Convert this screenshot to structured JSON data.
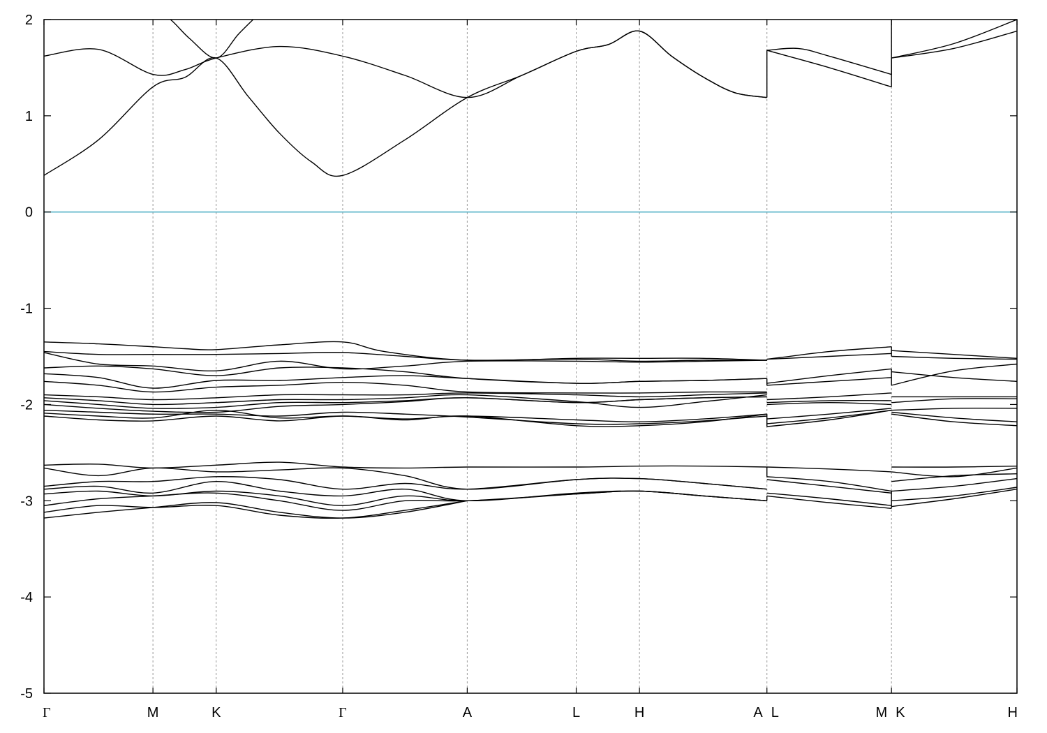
{
  "chart_data": {
    "type": "line",
    "title": "",
    "xlabel": "",
    "ylabel": "",
    "ylim": [
      -5,
      2
    ],
    "yticks": [
      2,
      1,
      0,
      -1,
      -2,
      -3,
      -4,
      -5
    ],
    "xlim": [
      0,
      10
    ],
    "high_symmetry_points": [
      {
        "label": "Γ",
        "x": 0.0
      },
      {
        "label": "M",
        "x": 1.12
      },
      {
        "label": "K",
        "x": 1.77
      },
      {
        "label": "Γ",
        "x": 3.07
      },
      {
        "label": "A",
        "x": 4.35
      },
      {
        "label": "L",
        "x": 5.47
      },
      {
        "label": "H",
        "x": 6.12
      },
      {
        "label": "A",
        "x": 7.43
      },
      {
        "label": "L",
        "x": 7.43
      },
      {
        "label": "M",
        "x": 8.71
      },
      {
        "label": "K",
        "x": 8.71
      },
      {
        "label": "H",
        "x": 10.0
      }
    ],
    "fermi_level": 0,
    "grid": "vertical dashed lines at high-symmetry points",
    "legend": "none",
    "series": [
      {
        "x": [
          0,
          0.56,
          1.12,
          1.45,
          1.77,
          2.1,
          2.42,
          2.75,
          3.07,
          3.71,
          4.35,
          4.91,
          5.47,
          5.8,
          6.12,
          6.45,
          6.78,
          7.1,
          7.43
        ],
        "y": [
          0.38,
          0.75,
          1.3,
          1.4,
          1.6,
          1.2,
          0.82,
          0.52,
          0.38,
          0.75,
          1.19,
          1.42,
          1.67,
          1.74,
          1.88,
          1.62,
          1.4,
          1.24,
          1.19
        ]
      },
      {
        "x": [
          0,
          0.56,
          1.12,
          1.45,
          1.77,
          2.42,
          3.07,
          3.71,
          4.35,
          4.91,
          5.47,
          5.8,
          6.12,
          6.45,
          6.78,
          7.1,
          7.43
        ],
        "y": [
          1.62,
          1.69,
          1.43,
          1.48,
          1.6,
          1.72,
          1.62,
          1.42,
          1.19,
          1.42,
          1.67,
          1.74,
          1.88,
          1.62,
          1.4,
          1.24,
          1.19
        ]
      },
      {
        "x": [
          1.12,
          1.3,
          1.5,
          1.77,
          2.0,
          2.2
        ],
        "y": [
          2.1,
          2.0,
          1.8,
          1.6,
          1.85,
          2.05
        ]
      },
      {
        "x": [
          7.43,
          8.07,
          8.71
        ],
        "y": [
          1.68,
          1.5,
          1.3
        ]
      },
      {
        "x": [
          7.43,
          7.75,
          8.07,
          8.71
        ],
        "y": [
          1.68,
          1.7,
          1.62,
          1.43
        ]
      },
      {
        "x": [
          8.71,
          9.35,
          10.0
        ],
        "y": [
          1.6,
          1.75,
          2.0
        ]
      },
      {
        "x": [
          8.71,
          9.35,
          10.0
        ],
        "y": [
          1.6,
          1.7,
          1.88
        ]
      },
      {
        "x": [
          0,
          0.56,
          1.12,
          1.45,
          1.77,
          2.42,
          3.07,
          3.5,
          4.35,
          5.47,
          6.12,
          6.78,
          7.43
        ],
        "y": [
          -1.35,
          -1.37,
          -1.4,
          -1.42,
          -1.43,
          -1.38,
          -1.35,
          -1.45,
          -1.54,
          -1.52,
          -1.52,
          -1.52,
          -1.54
        ]
      },
      {
        "x": [
          0,
          0.56,
          1.12,
          1.77,
          2.42,
          3.07,
          3.71,
          4.35,
          5.47,
          6.12,
          6.78,
          7.43
        ],
        "y": [
          -1.45,
          -1.48,
          -1.48,
          -1.48,
          -1.47,
          -1.46,
          -1.5,
          -1.54,
          -1.53,
          -1.55,
          -1.54,
          -1.54
        ]
      },
      {
        "x": [
          0,
          0.56,
          1.12,
          1.77,
          2.42,
          3.07,
          3.71,
          4.35,
          5.47,
          6.12,
          6.78,
          7.43
        ],
        "y": [
          -1.46,
          -1.58,
          -1.6,
          -1.65,
          -1.55,
          -1.63,
          -1.6,
          -1.55,
          -1.55,
          -1.56,
          -1.55,
          -1.54
        ]
      },
      {
        "x": [
          0,
          0.56,
          1.12,
          1.77,
          2.42,
          3.07,
          3.71,
          4.35,
          5.47,
          6.12,
          6.78,
          7.43
        ],
        "y": [
          -1.62,
          -1.6,
          -1.63,
          -1.7,
          -1.62,
          -1.62,
          -1.66,
          -1.73,
          -1.78,
          -1.76,
          -1.75,
          -1.73
        ]
      },
      {
        "x": [
          0,
          0.56,
          1.12,
          1.77,
          2.42,
          3.07,
          3.71,
          4.35,
          5.47,
          6.12,
          6.78,
          7.43
        ],
        "y": [
          -1.68,
          -1.72,
          -1.83,
          -1.75,
          -1.75,
          -1.72,
          -1.7,
          -1.73,
          -1.78,
          -1.76,
          -1.75,
          -1.73
        ]
      },
      {
        "x": [
          0,
          0.56,
          1.12,
          1.77,
          2.42,
          3.07,
          3.71,
          4.35,
          5.47,
          6.12,
          6.78,
          7.43
        ],
        "y": [
          -1.76,
          -1.8,
          -1.87,
          -1.82,
          -1.8,
          -1.77,
          -1.8,
          -1.87,
          -1.88,
          -1.88,
          -1.87,
          -1.87
        ]
      },
      {
        "x": [
          0,
          0.56,
          1.12,
          1.77,
          2.42,
          3.07,
          3.71,
          4.35,
          5.47,
          6.12,
          6.78,
          7.43
        ],
        "y": [
          -1.9,
          -1.92,
          -1.95,
          -1.93,
          -1.9,
          -1.9,
          -1.9,
          -1.88,
          -1.9,
          -1.92,
          -1.9,
          -1.88
        ]
      },
      {
        "x": [
          0,
          0.56,
          1.12,
          1.77,
          2.42,
          3.07,
          3.71,
          4.35,
          5.47,
          6.12,
          6.78,
          7.43
        ],
        "y": [
          -1.93,
          -1.96,
          -2.0,
          -1.98,
          -1.95,
          -1.95,
          -1.93,
          -1.9,
          -1.97,
          -2.03,
          -1.97,
          -1.9
        ]
      },
      {
        "x": [
          0,
          0.56,
          1.12,
          1.77,
          2.42,
          3.07,
          3.71,
          4.35,
          5.47,
          6.12,
          6.78,
          7.43
        ],
        "y": [
          -1.96,
          -2.0,
          -2.04,
          -2.03,
          -1.98,
          -1.98,
          -1.96,
          -1.93,
          -1.98,
          -1.95,
          -1.93,
          -1.92
        ]
      },
      {
        "x": [
          0,
          0.56,
          1.12,
          1.77,
          2.42,
          3.07,
          3.71,
          4.35,
          5.47,
          6.12,
          6.78,
          7.43
        ],
        "y": [
          -2.0,
          -2.04,
          -2.07,
          -2.08,
          -2.02,
          -2.0,
          -1.97,
          -1.93,
          -1.98,
          -1.95,
          -1.93,
          -1.92
        ]
      },
      {
        "x": [
          0,
          0.56,
          1.12,
          1.77,
          2.42,
          3.07,
          3.71,
          4.35,
          5.47,
          6.12,
          6.78,
          7.43
        ],
        "y": [
          -2.06,
          -2.08,
          -2.1,
          -2.1,
          -2.12,
          -2.08,
          -2.1,
          -2.13,
          -2.2,
          -2.2,
          -2.17,
          -2.12
        ]
      },
      {
        "x": [
          0,
          0.56,
          1.12,
          1.77,
          2.42,
          3.07,
          3.71,
          4.35,
          5.47,
          6.12,
          6.78,
          7.43
        ],
        "y": [
          -2.09,
          -2.12,
          -2.14,
          -2.06,
          -2.14,
          -2.12,
          -2.15,
          -2.12,
          -2.16,
          -2.18,
          -2.15,
          -2.1
        ]
      },
      {
        "x": [
          0,
          0.56,
          1.12,
          1.77,
          2.42,
          3.07,
          3.71,
          4.35,
          5.47,
          6.12,
          6.78,
          7.43
        ],
        "y": [
          -2.12,
          -2.16,
          -2.17,
          -2.12,
          -2.17,
          -2.12,
          -2.16,
          -2.12,
          -2.22,
          -2.22,
          -2.18,
          -2.1
        ]
      },
      {
        "x": [
          7.43,
          8.07,
          8.71
        ],
        "y": [
          -1.53,
          -1.45,
          -1.4
        ]
      },
      {
        "x": [
          7.43,
          8.07,
          8.71
        ],
        "y": [
          -1.53,
          -1.5,
          -1.47
        ]
      },
      {
        "x": [
          7.43,
          8.07,
          8.71
        ],
        "y": [
          -1.78,
          -1.7,
          -1.63
        ]
      },
      {
        "x": [
          7.43,
          8.07,
          8.71
        ],
        "y": [
          -1.8,
          -1.76,
          -1.72
        ]
      },
      {
        "x": [
          7.43,
          8.07,
          8.71
        ],
        "y": [
          -1.95,
          -1.92,
          -1.88
        ]
      },
      {
        "x": [
          7.43,
          8.07,
          8.71
        ],
        "y": [
          -1.98,
          -1.96,
          -1.96
        ]
      },
      {
        "x": [
          7.43,
          8.07,
          8.71
        ],
        "y": [
          -2.0,
          -1.98,
          -2.0
        ]
      },
      {
        "x": [
          7.43,
          8.07,
          8.71
        ],
        "y": [
          -2.15,
          -2.1,
          -2.04
        ]
      },
      {
        "x": [
          7.43,
          8.07,
          8.71
        ],
        "y": [
          -2.2,
          -2.14,
          -2.06
        ]
      },
      {
        "x": [
          7.43,
          8.07,
          8.71
        ],
        "y": [
          -2.23,
          -2.16,
          -2.06
        ]
      },
      {
        "x": [
          8.71,
          9.35,
          10.0
        ],
        "y": [
          -1.44,
          -1.48,
          -1.52
        ]
      },
      {
        "x": [
          8.71,
          9.35,
          10.0
        ],
        "y": [
          -1.5,
          -1.52,
          -1.53
        ]
      },
      {
        "x": [
          8.71,
          9.35,
          10.0
        ],
        "y": [
          -1.8,
          -1.65,
          -1.58
        ]
      },
      {
        "x": [
          8.71,
          9.35,
          10.0
        ],
        "y": [
          -1.66,
          -1.72,
          -1.76
        ]
      },
      {
        "x": [
          8.71,
          9.35,
          10.0
        ],
        "y": [
          -1.92,
          -1.92,
          -1.92
        ]
      },
      {
        "x": [
          8.71,
          9.35,
          10.0
        ],
        "y": [
          -1.98,
          -1.94,
          -1.94
        ]
      },
      {
        "x": [
          8.71,
          9.35,
          10.0
        ],
        "y": [
          -2.06,
          -2.04,
          -2.04
        ]
      },
      {
        "x": [
          8.71,
          9.35,
          10.0
        ],
        "y": [
          -2.08,
          -2.14,
          -2.18
        ]
      },
      {
        "x": [
          8.71,
          9.35,
          10.0
        ],
        "y": [
          -2.1,
          -2.18,
          -2.22
        ]
      },
      {
        "x": [
          0,
          0.56,
          1.12,
          1.77,
          2.42,
          3.07,
          3.71,
          4.35,
          5.47,
          6.12,
          6.78,
          7.43
        ],
        "y": [
          -2.63,
          -2.62,
          -2.66,
          -2.63,
          -2.6,
          -2.65,
          -2.66,
          -2.65,
          -2.65,
          -2.64,
          -2.64,
          -2.65
        ]
      },
      {
        "x": [
          0,
          0.56,
          1.12,
          1.77,
          2.42,
          3.07,
          3.71,
          4.35,
          5.47,
          6.12,
          6.78,
          7.43
        ],
        "y": [
          -2.66,
          -2.74,
          -2.66,
          -2.7,
          -2.68,
          -2.66,
          -2.74,
          -2.88,
          -2.78,
          -2.77,
          -2.82,
          -2.88
        ]
      },
      {
        "x": [
          0,
          0.56,
          1.12,
          1.77,
          2.42,
          3.07,
          3.71,
          4.35,
          5.47,
          6.12,
          6.78,
          7.43
        ],
        "y": [
          -2.85,
          -2.8,
          -2.8,
          -2.75,
          -2.78,
          -2.88,
          -2.82,
          -2.88,
          -2.78,
          -2.77,
          -2.82,
          -2.88
        ]
      },
      {
        "x": [
          0,
          0.56,
          1.12,
          1.77,
          2.42,
          3.07,
          3.71,
          4.35,
          5.47,
          6.12,
          6.78,
          7.43
        ],
        "y": [
          -2.88,
          -2.85,
          -2.92,
          -2.8,
          -2.9,
          -2.95,
          -2.88,
          -3.0,
          -2.92,
          -2.9,
          -2.95,
          -3.0
        ]
      },
      {
        "x": [
          0,
          0.56,
          1.12,
          1.77,
          2.42,
          3.07,
          3.71,
          4.35,
          5.47,
          6.12,
          6.78,
          7.43
        ],
        "y": [
          -2.93,
          -2.9,
          -2.95,
          -2.9,
          -2.95,
          -3.05,
          -2.95,
          -3.0,
          -2.93,
          -2.9,
          -2.95,
          -3.0
        ]
      },
      {
        "x": [
          0,
          0.56,
          1.12,
          1.77,
          2.42,
          3.07,
          3.71,
          4.35,
          5.47,
          6.12,
          6.78,
          7.43
        ],
        "y": [
          -3.05,
          -2.98,
          -2.95,
          -2.92,
          -3.0,
          -3.1,
          -3.0,
          -3.0,
          -2.93,
          -2.9,
          -2.95,
          -3.0
        ]
      },
      {
        "x": [
          0,
          0.56,
          1.12,
          1.77,
          2.42,
          3.07,
          3.71,
          4.35
        ],
        "y": [
          -3.12,
          -3.05,
          -3.07,
          -3.05,
          -3.15,
          -3.18,
          -3.1,
          -3.0
        ]
      },
      {
        "x": [
          0,
          0.56,
          1.12,
          1.77,
          2.42,
          3.07,
          3.71,
          4.35
        ],
        "y": [
          -3.18,
          -3.12,
          -3.07,
          -3.02,
          -3.12,
          -3.18,
          -3.12,
          -3.0
        ]
      },
      {
        "x": [
          7.43,
          8.07,
          8.71
        ],
        "y": [
          -2.75,
          -2.8,
          -2.9
        ]
      },
      {
        "x": [
          7.43,
          8.07,
          8.71
        ],
        "y": [
          -2.78,
          -2.85,
          -2.92
        ]
      },
      {
        "x": [
          7.43,
          8.07,
          8.71
        ],
        "y": [
          -2.92,
          -2.98,
          -3.05
        ]
      },
      {
        "x": [
          7.43,
          8.07,
          8.71
        ],
        "y": [
          -2.95,
          -3.02,
          -3.08
        ]
      },
      {
        "x": [
          7.43,
          8.07,
          8.71
        ],
        "y": [
          -2.65,
          -2.67,
          -2.7
        ]
      },
      {
        "x": [
          8.71,
          9.35,
          10.0
        ],
        "y": [
          -2.65,
          -2.65,
          -2.64
        ]
      },
      {
        "x": [
          8.71,
          9.35,
          10.0
        ],
        "y": [
          -2.7,
          -2.75,
          -2.66
        ]
      },
      {
        "x": [
          8.71,
          9.35,
          10.0
        ],
        "y": [
          -2.8,
          -2.74,
          -2.72
        ]
      },
      {
        "x": [
          8.71,
          9.35,
          10.0
        ],
        "y": [
          -2.9,
          -2.85,
          -2.77
        ]
      },
      {
        "x": [
          8.71,
          9.35,
          10.0
        ],
        "y": [
          -3.0,
          -2.95,
          -2.86
        ]
      },
      {
        "x": [
          8.71,
          9.35,
          10.0
        ],
        "y": [
          -3.06,
          -2.98,
          -2.88
        ]
      }
    ]
  }
}
